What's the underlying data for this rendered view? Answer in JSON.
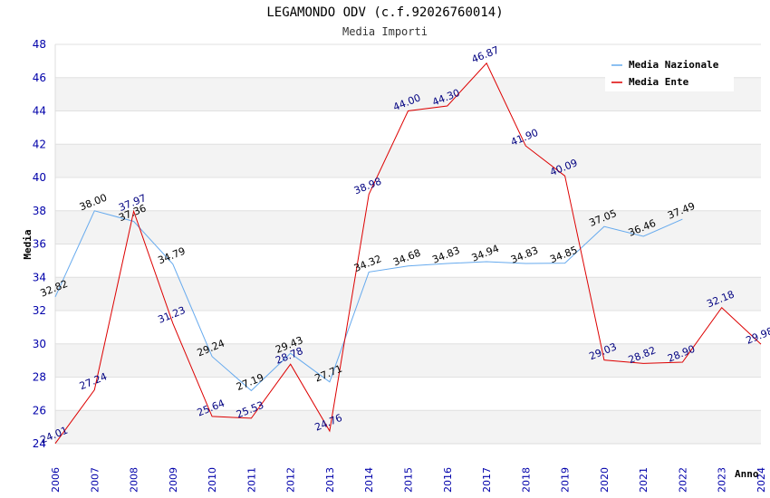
{
  "chart_data": {
    "type": "line",
    "title": "LEGAMONDO ODV (c.f.92026760014)",
    "subtitle": "Media Importi",
    "xlabel": "Anno",
    "ylabel": "Media",
    "ylim": [
      24,
      48
    ],
    "yticks": [
      24,
      26,
      28,
      30,
      32,
      34,
      36,
      38,
      40,
      42,
      44,
      46,
      48
    ],
    "x": [
      2006,
      2007,
      2008,
      2009,
      2010,
      2011,
      2012,
      2013,
      2014,
      2015,
      2016,
      2017,
      2018,
      2019,
      2020,
      2021,
      2022,
      2023,
      2024
    ],
    "grid": "horizontal bands",
    "legend_position": "top-right",
    "series": [
      {
        "name": "Media Nazionale",
        "color": "#66aaee",
        "label_color": "#000000",
        "values": [
          32.82,
          38.0,
          37.36,
          34.79,
          29.24,
          27.19,
          29.43,
          27.71,
          34.32,
          34.68,
          34.83,
          34.94,
          34.83,
          34.85,
          37.05,
          36.46,
          37.49,
          null,
          null
        ],
        "labels": [
          "32.82",
          "38.00",
          "37.36",
          "34.79",
          "29.24",
          "27.19",
          "29.43",
          "27.71",
          "34.32",
          "34.68",
          "34.83",
          "34.94",
          "34.83",
          "34.85",
          "37.05",
          "36.46",
          "37.49",
          null,
          null
        ]
      },
      {
        "name": "Media Ente",
        "color": "#dd0000",
        "label_color": "#000080",
        "values": [
          24.01,
          27.24,
          37.97,
          31.23,
          25.64,
          25.53,
          28.78,
          24.76,
          38.98,
          44.0,
          44.3,
          46.87,
          41.9,
          40.09,
          29.03,
          28.82,
          28.9,
          32.18,
          29.98
        ],
        "labels": [
          "24.01",
          "27.24",
          "37.97",
          "31.23",
          "25.64",
          "25.53",
          "28.78",
          "24.76",
          "38.98",
          "44.00",
          "44.30",
          "46.87",
          "41.90",
          "40.09",
          "29.03",
          "28.82",
          "28.90",
          "32.18",
          "29.98"
        ]
      }
    ]
  }
}
